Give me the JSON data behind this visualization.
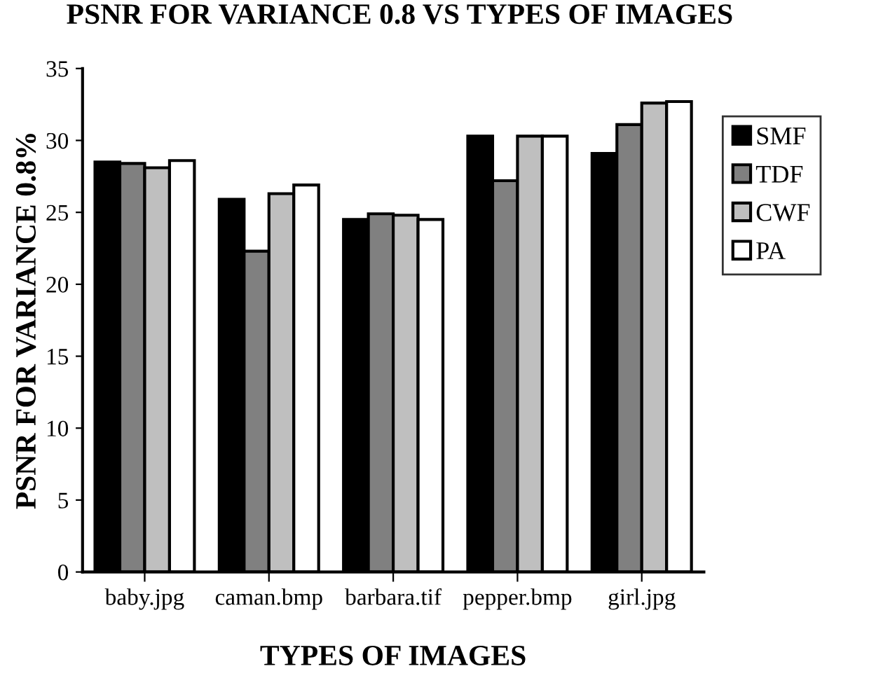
{
  "chart_data": {
    "type": "bar",
    "title": "PSNR FOR VARIANCE 0.8 VS TYPES OF IMAGES",
    "xlabel": "TYPES OF IMAGES",
    "ylabel": "PSNR FOR VARIANCE 0.8%",
    "categories": [
      "baby.jpg",
      "caman.bmp",
      "barbara.tif",
      "pepper.bmp",
      "girl.jpg"
    ],
    "series": [
      {
        "name": "SMF",
        "color": "#000000",
        "values": [
          28.5,
          25.9,
          24.5,
          30.3,
          29.1
        ]
      },
      {
        "name": "TDF",
        "color": "#808080",
        "values": [
          28.4,
          22.3,
          24.9,
          27.2,
          31.1
        ]
      },
      {
        "name": "CWF",
        "color": "#bfbfbf",
        "values": [
          28.1,
          26.3,
          24.8,
          30.3,
          32.6
        ]
      },
      {
        "name": "PA",
        "color": "#ffffff",
        "values": [
          28.6,
          26.9,
          24.5,
          30.3,
          32.7
        ]
      }
    ],
    "ylim": [
      0,
      35
    ],
    "yticks": [
      0,
      5,
      10,
      15,
      20,
      25,
      30,
      35
    ],
    "grid": false,
    "legend": "right"
  }
}
